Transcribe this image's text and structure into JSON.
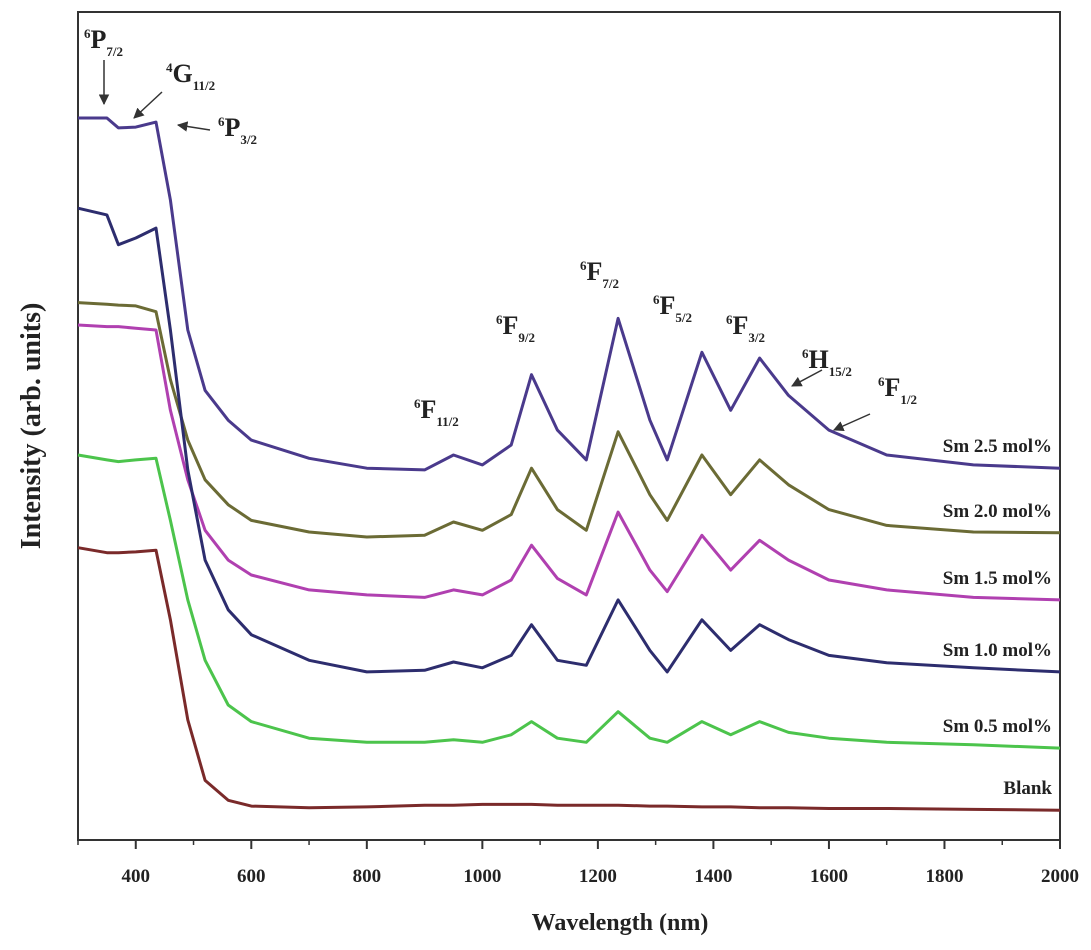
{
  "chart_data": {
    "type": "line",
    "xlabel": "Wavelength (nm)",
    "ylabel": "Intensity (arb. units)",
    "x": [
      300,
      350,
      370,
      400,
      435,
      460,
      490,
      520,
      560,
      600,
      700,
      800,
      900,
      950,
      1000,
      1050,
      1085,
      1130,
      1180,
      1235,
      1290,
      1320,
      1380,
      1430,
      1480,
      1530,
      1600,
      1700,
      1850,
      2000
    ],
    "xlim": [
      300,
      2000
    ],
    "ylim": [
      0,
      100
    ],
    "xticks": [
      400,
      600,
      800,
      1000,
      1200,
      1400,
      1600,
      1800,
      2000
    ],
    "xminorticks": [
      300,
      500,
      700,
      900,
      1100,
      1300,
      1500,
      1700,
      1900
    ],
    "series": [
      {
        "name": "Sm 2.5 mol%",
        "color": "#4a3a8c",
        "values": [
          87.2,
          87.2,
          86.0,
          86.1,
          86.7,
          77.3,
          61.6,
          54.3,
          50.7,
          48.3,
          46.1,
          44.9,
          44.7,
          46.5,
          45.3,
          47.7,
          56.2,
          49.5,
          45.9,
          63.0,
          50.7,
          45.9,
          58.9,
          51.9,
          58.2,
          53.7,
          49.5,
          46.5,
          45.3,
          44.9
        ]
      },
      {
        "name": "Sm 2.0 mol%",
        "color": "#6b6b35",
        "values": [
          64.9,
          64.7,
          64.6,
          64.5,
          63.8,
          55.6,
          48.3,
          43.5,
          40.5,
          38.6,
          37.2,
          36.6,
          36.8,
          38.4,
          37.4,
          39.3,
          44.9,
          39.9,
          37.4,
          49.3,
          41.7,
          38.6,
          46.5,
          41.7,
          45.9,
          42.9,
          39.9,
          38.0,
          37.2,
          37.1
        ]
      },
      {
        "name": "Sm 1.5 mol%",
        "color": "#b040b0",
        "values": [
          62.2,
          62.0,
          62.0,
          61.8,
          61.6,
          51.9,
          43.5,
          37.4,
          33.8,
          32.0,
          30.2,
          29.6,
          29.3,
          30.2,
          29.6,
          31.4,
          35.6,
          31.6,
          29.6,
          39.6,
          32.6,
          30.0,
          36.8,
          32.6,
          36.2,
          33.8,
          31.4,
          30.2,
          29.3,
          29.0
        ]
      },
      {
        "name": "Sm 1.0 mol%",
        "color": "#2d2d6e",
        "values": [
          76.3,
          75.5,
          71.9,
          72.7,
          73.9,
          61.6,
          44.7,
          33.8,
          27.8,
          24.8,
          21.7,
          20.3,
          20.5,
          21.5,
          20.8,
          22.3,
          26.0,
          21.7,
          21.1,
          29.0,
          22.9,
          20.3,
          26.6,
          22.9,
          26.0,
          24.2,
          22.3,
          21.4,
          20.8,
          20.3
        ]
      },
      {
        "name": "Sm 0.5 mol%",
        "color": "#4cc44c",
        "values": [
          46.5,
          45.9,
          45.7,
          45.9,
          46.1,
          38.6,
          29.0,
          21.7,
          16.3,
          14.3,
          12.3,
          11.8,
          11.8,
          12.1,
          11.8,
          12.7,
          14.3,
          12.3,
          11.8,
          15.5,
          12.3,
          11.8,
          14.3,
          12.7,
          14.3,
          13.0,
          12.3,
          11.8,
          11.5,
          11.1
        ]
      },
      {
        "name": "Blank",
        "color": "#7a2a2a",
        "values": [
          35.3,
          34.7,
          34.7,
          34.8,
          35.0,
          26.6,
          14.5,
          7.2,
          4.8,
          4.1,
          3.9,
          4.0,
          4.2,
          4.2,
          4.3,
          4.3,
          4.3,
          4.2,
          4.2,
          4.2,
          4.1,
          4.1,
          4.0,
          4.0,
          3.9,
          3.9,
          3.8,
          3.8,
          3.7,
          3.6
        ]
      }
    ],
    "annotations": [
      {
        "sup": "6",
        "main": "P",
        "sub": "7/2"
      },
      {
        "sup": "4",
        "main": "G",
        "sub": "11/2"
      },
      {
        "sup": "6",
        "main": "P",
        "sub": "3/2"
      },
      {
        "sup": "6",
        "main": "F",
        "sub": "11/2"
      },
      {
        "sup": "6",
        "main": "F",
        "sub": "9/2"
      },
      {
        "sup": "6",
        "main": "F",
        "sub": "7/2"
      },
      {
        "sup": "6",
        "main": "F",
        "sub": "5/2"
      },
      {
        "sup": "6",
        "main": "F",
        "sub": "3/2"
      },
      {
        "sup": "6",
        "main": "H",
        "sub": "15/2"
      },
      {
        "sup": "6",
        "main": "F",
        "sub": "1/2"
      }
    ]
  }
}
